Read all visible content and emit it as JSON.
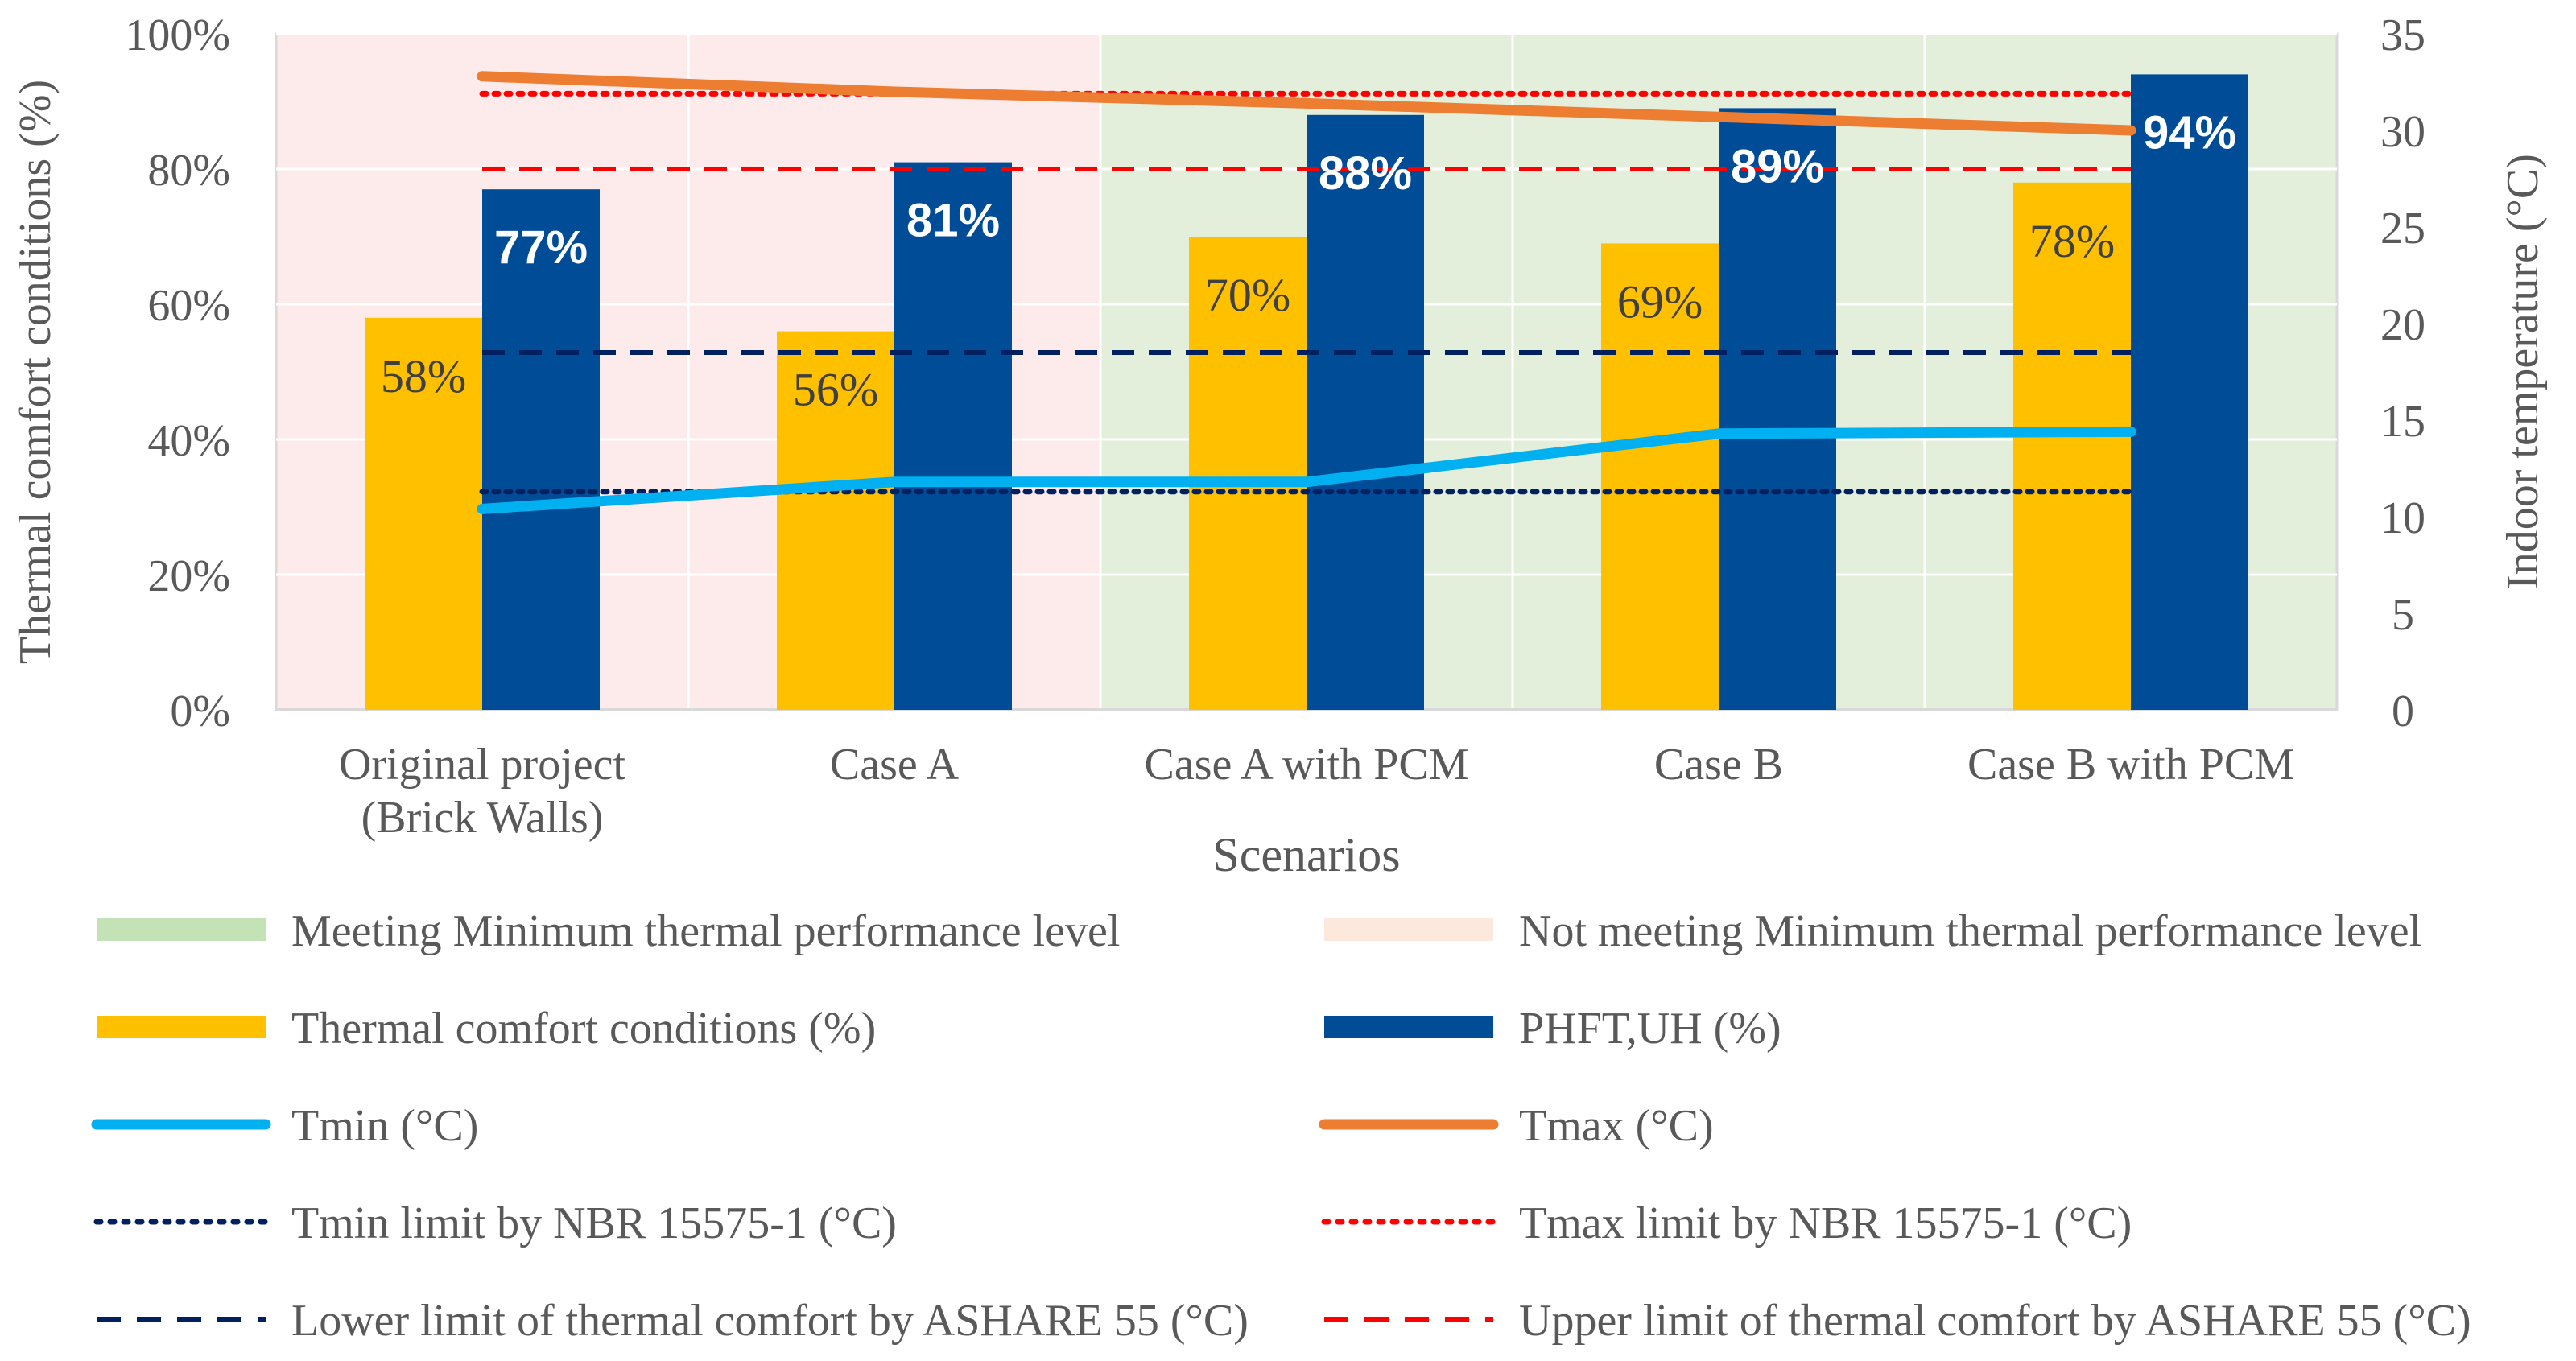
{
  "chart_data": {
    "type": "bar",
    "title": "",
    "xlabel": "Scenarios",
    "ylabel": "Thermal  comfort  conditions  (%)",
    "y2label": "Indoor temperature (°C)",
    "ylim": [
      0,
      100
    ],
    "y2lim": [
      0,
      35
    ],
    "yticks": [
      "0%",
      "20%",
      "40%",
      "60%",
      "80%",
      "100%"
    ],
    "y2ticks": [
      "0",
      "5",
      "10",
      "15",
      "20",
      "25",
      "30",
      "35"
    ],
    "categories": [
      [
        "Original project",
        "(Brick Walls)"
      ],
      [
        "Case A"
      ],
      [
        "Case A with PCM"
      ],
      [
        "Case B"
      ],
      [
        "Case B with PCM"
      ]
    ],
    "background": {
      "not_meeting": [
        0,
        1
      ],
      "meeting": [
        2,
        3,
        4
      ]
    },
    "series": [
      {
        "name": "Thermal comfort conditions (%)",
        "kind": "bar",
        "color": "#FFC000",
        "values": [
          58,
          56,
          70,
          69,
          78
        ],
        "labels": [
          "58%",
          "56%",
          "70%",
          "69%",
          "78%"
        ]
      },
      {
        "name": "PHFT,UH (%)",
        "kind": "bar",
        "color": "#004C97",
        "values": [
          77,
          81,
          88,
          89,
          94
        ],
        "labels": [
          "77%",
          "81%",
          "88%",
          "89%",
          "94%"
        ]
      },
      {
        "name": "Tmin (°C)",
        "kind": "line",
        "axis": "right",
        "color": "#00B0F0",
        "values": [
          10.4,
          11.8,
          11.8,
          14.3,
          14.4
        ]
      },
      {
        "name": "Tmax (°C)",
        "kind": "line",
        "axis": "right",
        "color": "#ED7D31",
        "values": [
          32.8,
          32.0,
          31.4,
          30.7,
          30.0
        ]
      },
      {
        "name": "Tmin limit by NBR 15575-1 (°C)",
        "kind": "hline",
        "axis": "right",
        "color": "#002060",
        "style": "dotted",
        "value": 11.3
      },
      {
        "name": "Tmax limit by NBR 15575-1 (°C)",
        "kind": "hline",
        "axis": "right",
        "color": "#FF0000",
        "style": "dotted",
        "value": 31.9
      },
      {
        "name": "Lower limit of thermal comfort by ASHARE 55 (°C)",
        "kind": "hline",
        "axis": "right",
        "color": "#002060",
        "style": "dashed",
        "value": 18.5
      },
      {
        "name": "Upper limit of thermal comfort by ASHARE 55 (°C)",
        "kind": "hline",
        "axis": "right",
        "color": "#FF0000",
        "style": "dashed",
        "value": 28.0
      }
    ],
    "legend": {
      "position": "bottom",
      "items": [
        {
          "label": "Meeting Minimum thermal performance level",
          "symbol": "band",
          "color": "#B9DDA8"
        },
        {
          "label": "Not meeting Minimum thermal performance level",
          "symbol": "band",
          "color": "#FCE4D6"
        },
        {
          "label": "Thermal comfort conditions (%)",
          "symbol": "bar",
          "color": "#FFC000"
        },
        {
          "label": "PHFT,UH (%)",
          "symbol": "bar",
          "color": "#004C97"
        },
        {
          "label": "Tmin (°C)",
          "symbol": "line",
          "color": "#00B0F0"
        },
        {
          "label": "Tmax (°C)",
          "symbol": "line",
          "color": "#ED7D31"
        },
        {
          "label": "Tmin limit by NBR 15575-1 (°C)",
          "symbol": "dotted",
          "color": "#002060"
        },
        {
          "label": "Tmax limit by NBR 15575-1 (°C)",
          "symbol": "dotted",
          "color": "#FF0000"
        },
        {
          "label": "Lower limit of thermal comfort by ASHARE 55 (°C)",
          "symbol": "dashed",
          "color": "#002060"
        },
        {
          "label": "Upper limit of thermal comfort by ASHARE 55 (°C)",
          "symbol": "dashed",
          "color": "#FF0000"
        }
      ]
    },
    "colors": {
      "not_meeting_bg": "#FDEAEA",
      "meeting_bg": "#E3EFDA",
      "grid": "#FFFFFF",
      "axis_text": "#595959"
    }
  }
}
